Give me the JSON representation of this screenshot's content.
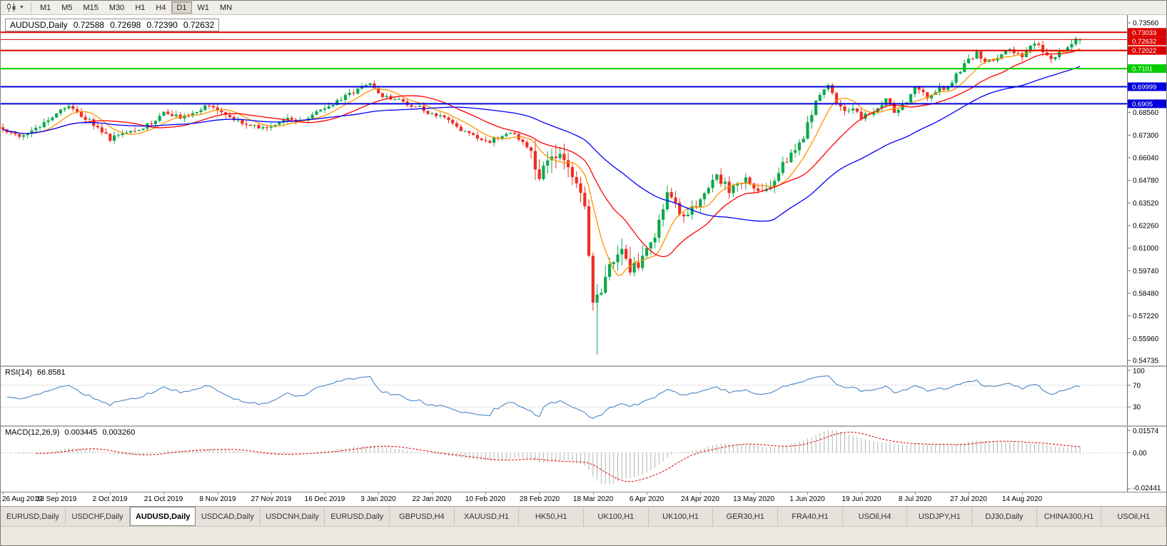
{
  "toolbar": {
    "chart_type_button": "candlestick-chart",
    "timeframes": [
      "M1",
      "M5",
      "M15",
      "M30",
      "H1",
      "H4",
      "D1",
      "W1",
      "MN"
    ],
    "active_timeframe": "D1"
  },
  "chart_data": {
    "type": "candlestick",
    "title": {
      "symbol_period": "AUDUSD,Daily",
      "open": "0.72588",
      "high": "0.72698",
      "low": "0.72390",
      "close": "0.72632"
    },
    "num_bars": 262,
    "bar_spacing": 5.782,
    "label_every": 13,
    "x_labels": [
      "26 Aug 2019",
      "13 Sep 2019",
      "2 Oct 2019",
      "21 Oct 2019",
      "8 Nov 2019",
      "27 Nov 2019",
      "16 Dec 2019",
      "3 Jan 2020",
      "22 Jan 2020",
      "10 Feb 2020",
      "28 Feb 2020",
      "18 Mar 2020",
      "6 Apr 2020",
      "24 Apr 2020",
      "13 May 2020",
      "1 Jun 2020",
      "19 Jun 2020",
      "8 Jul 2020",
      "27 Jul 2020",
      "14 Aug 2020"
    ],
    "y_axis": {
      "range": [
        0.5446,
        0.74
      ],
      "ticks": [
        "0.73560",
        "0.68560",
        "0.67300",
        "0.66040",
        "0.64780",
        "0.63520",
        "0.62260",
        "0.61000",
        "0.59740",
        "0.58480",
        "0.57220",
        "0.55960",
        "0.54735"
      ]
    },
    "colors": {
      "bull": "#0ca94c",
      "bear": "#ef2e24",
      "background": "#ffffff",
      "axis_line": "#6e6e6e"
    },
    "close_anchors": [
      [
        0,
        0.6762
      ],
      [
        3,
        0.6722
      ],
      [
        6,
        0.6745
      ],
      [
        9,
        0.678
      ],
      [
        13,
        0.6855
      ],
      [
        16,
        0.688
      ],
      [
        20,
        0.6825
      ],
      [
        23,
        0.6765
      ],
      [
        26,
        0.6705
      ],
      [
        29,
        0.6745
      ],
      [
        33,
        0.676
      ],
      [
        36,
        0.68
      ],
      [
        39,
        0.686
      ],
      [
        43,
        0.6835
      ],
      [
        47,
        0.6865
      ],
      [
        50,
        0.6895
      ],
      [
        52,
        0.6865
      ],
      [
        56,
        0.682
      ],
      [
        60,
        0.679
      ],
      [
        63,
        0.677
      ],
      [
        65,
        0.6782
      ],
      [
        69,
        0.683
      ],
      [
        72,
        0.6805
      ],
      [
        75,
        0.684
      ],
      [
        78,
        0.688
      ],
      [
        82,
        0.693
      ],
      [
        86,
        0.698
      ],
      [
        89,
        0.7025
      ],
      [
        91,
        0.6955
      ],
      [
        95,
        0.6925
      ],
      [
        98,
        0.6905
      ],
      [
        101,
        0.688
      ],
      [
        104,
        0.6845
      ],
      [
        108,
        0.681
      ],
      [
        112,
        0.6745
      ],
      [
        115,
        0.671
      ],
      [
        117,
        0.669
      ],
      [
        120,
        0.672
      ],
      [
        124,
        0.6735
      ],
      [
        127,
        0.666
      ],
      [
        130,
        0.6515
      ],
      [
        132,
        0.6585
      ],
      [
        134,
        0.6625
      ],
      [
        136,
        0.657
      ],
      [
        138,
        0.649
      ],
      [
        140,
        0.6395
      ],
      [
        141,
        0.63
      ],
      [
        143,
        0.578
      ],
      [
        144,
        0.58
      ],
      [
        146,
        0.592
      ],
      [
        149,
        0.609
      ],
      [
        152,
        0.599
      ],
      [
        154,
        0.603
      ],
      [
        156,
        0.6085
      ],
      [
        158,
        0.618
      ],
      [
        161,
        0.64
      ],
      [
        165,
        0.628
      ],
      [
        169,
        0.636
      ],
      [
        173,
        0.651
      ],
      [
        176,
        0.642
      ],
      [
        180,
        0.648
      ],
      [
        182,
        0.645
      ],
      [
        185,
        0.642
      ],
      [
        188,
        0.653
      ],
      [
        191,
        0.663
      ],
      [
        194,
        0.672
      ],
      [
        195,
        0.68
      ],
      [
        197,
        0.692
      ],
      [
        200,
        0.7
      ],
      [
        202,
        0.692
      ],
      [
        204,
        0.685
      ],
      [
        206,
        0.688
      ],
      [
        208,
        0.6835
      ],
      [
        211,
        0.687
      ],
      [
        214,
        0.692
      ],
      [
        216,
        0.6865
      ],
      [
        219,
        0.6915
      ],
      [
        221,
        0.6985
      ],
      [
        224,
        0.695
      ],
      [
        227,
        0.6985
      ],
      [
        229,
        0.699
      ],
      [
        231,
        0.706
      ],
      [
        233,
        0.7125
      ],
      [
        234,
        0.715
      ],
      [
        236,
        0.7185
      ],
      [
        238,
        0.714
      ],
      [
        240,
        0.7155
      ],
      [
        242,
        0.7185
      ],
      [
        244,
        0.72
      ],
      [
        247,
        0.717
      ],
      [
        250,
        0.724
      ],
      [
        252,
        0.7205
      ],
      [
        254,
        0.716
      ],
      [
        256,
        0.719
      ],
      [
        258,
        0.723
      ],
      [
        260,
        0.7255
      ],
      [
        261,
        0.72632
      ]
    ],
    "volatility_zones": [
      [
        0,
        127,
        0.0026
      ],
      [
        128,
        156,
        0.0085
      ],
      [
        157,
        196,
        0.0048
      ],
      [
        197,
        261,
        0.003
      ]
    ],
    "extreme_low": {
      "bar": 144,
      "price": 0.5506
    },
    "last_bar": {
      "open": 0.72588,
      "high": 0.72698,
      "low": 0.7239,
      "close": 0.72632
    },
    "moving_averages": [
      {
        "period": 8,
        "color": "#ff9500"
      },
      {
        "period": 20,
        "color": "#ff0000"
      },
      {
        "period": 45,
        "color": "#0000ff"
      }
    ],
    "hlines": [
      {
        "price": 0.73033,
        "label": "0.73033",
        "color": "#dd0000",
        "width": 2
      },
      {
        "price": 0.72022,
        "label": "0.72022",
        "color": "#dd0000",
        "width": 2
      },
      {
        "price": 0.7101,
        "label": "0.7101",
        "color": "#00cc00",
        "width": 2
      },
      {
        "price": 0.69999,
        "label": "0.69999",
        "color": "#0000dd",
        "width": 2
      },
      {
        "price": 0.6905,
        "label": "0.6905",
        "color": "#0000dd",
        "width": 2
      }
    ],
    "price_line": {
      "price": 0.72632,
      "label": "0.72632",
      "color": "#dd0000",
      "width": 1
    },
    "indicators": {
      "rsi": {
        "label": "RSI(14)",
        "value": "66.8581",
        "period": 14,
        "levels": [
          70,
          30
        ],
        "axis_labels": [
          "100",
          "70",
          "30"
        ],
        "color": "#4a87c7",
        "range": [
          0,
          100
        ]
      },
      "macd": {
        "label": "MACD(12,26,9)",
        "value_main": "0.003445",
        "value_signal": "0.003260",
        "fast": 12,
        "slow": 26,
        "signal_period": 9,
        "range": [
          -0.02441,
          0.01574
        ],
        "axis_labels": [
          "0.01574",
          "0.00",
          "-0.02441"
        ],
        "histogram_color": "#b2b2b2",
        "signal_color": "#e10000"
      }
    }
  },
  "tabs": {
    "items": [
      "EURUSD,Daily",
      "USDCHF,Daily",
      "AUDUSD,Daily",
      "USDCAD,Daily",
      "USDCNH,Daily",
      "EURUSD,Daily",
      "GBPUSD,H4",
      "XAUUSD,H1",
      "HK50,H1",
      "UK100,H1",
      "UK100,H1",
      "GER30,H1",
      "FRA40,H1",
      "USOil,H4",
      "USDJPY,H1",
      "DJ30,Daily",
      "CHINA300,H1",
      "USOil,H1"
    ],
    "active_index": 2
  }
}
